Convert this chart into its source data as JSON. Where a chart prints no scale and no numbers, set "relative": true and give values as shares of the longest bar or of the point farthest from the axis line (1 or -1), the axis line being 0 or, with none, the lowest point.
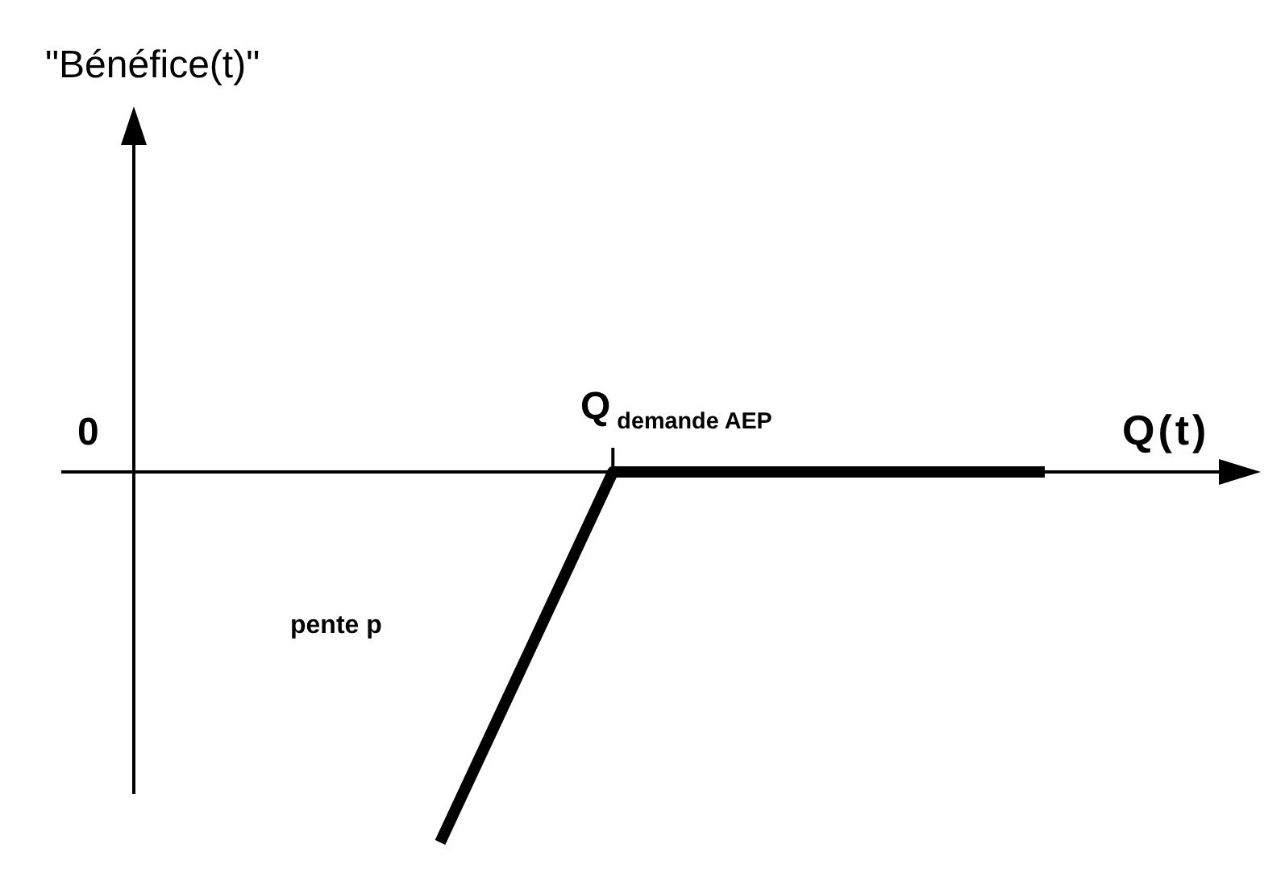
{
  "chart_data": {
    "type": "line",
    "relative": true,
    "xlabel": "Q(t)",
    "categories": [
      null,
      null,
      null,
      null,
      null,
      null,
      null,
      null
    ],
    "series": [
      {
        "color": "#000000",
        "values": [
          -1,
          -0.5,
          0,
          0,
          0,
          0,
          0,
          0
        ]
      }
    ],
    "annotations": [
      "0",
      "Q$_{demande AEP}$",
      "pente p",
      "\"Bénéfice(t)\""
    ]
  }
}
